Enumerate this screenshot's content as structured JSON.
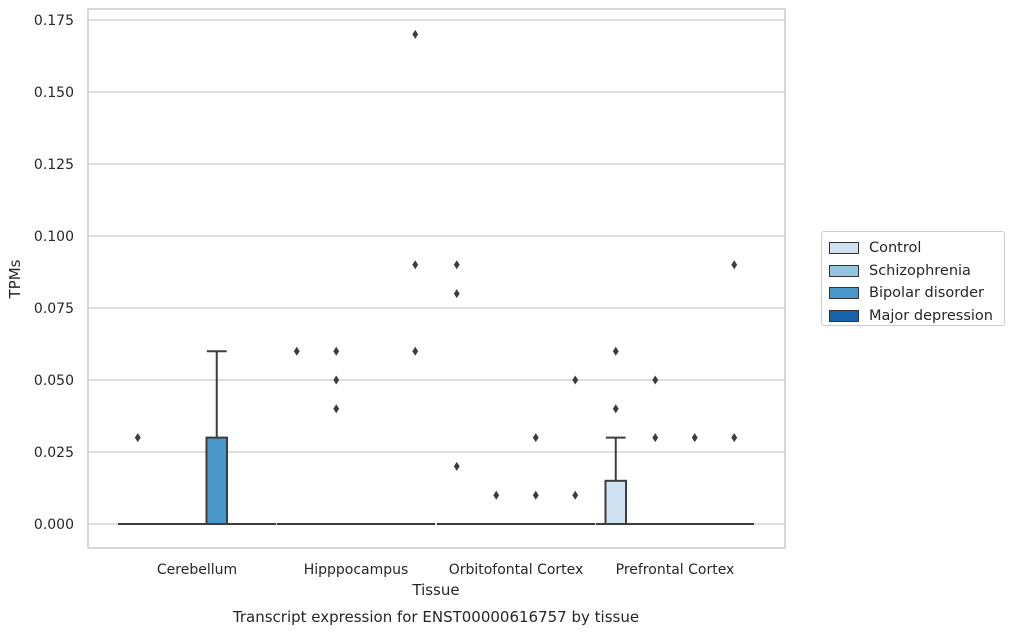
{
  "chart_data": {
    "type": "box",
    "title": "Transcript expression for ENST00000616757 by tissue",
    "xlabel": "Tissue",
    "ylabel": "TPMs",
    "ylim": [
      -0.0085,
      0.1785
    ],
    "yticks": [
      "0.000",
      "0.025",
      "0.050",
      "0.075",
      "0.100",
      "0.125",
      "0.150",
      "0.175"
    ],
    "grid": "horizontal",
    "legend_position": "right",
    "categories": [
      "Cerebellum",
      "Hipppocampus",
      "Orbitofontal Cortex",
      "Prefrontal Cortex"
    ],
    "series": [
      {
        "name": "Control",
        "color": "#d0e1f2",
        "boxes": [
          {
            "q1": 0,
            "median": 0,
            "q3": 0,
            "whisker_low": 0,
            "whisker_high": 0,
            "outliers": [
              0.03
            ]
          },
          {
            "q1": 0,
            "median": 0,
            "q3": 0,
            "whisker_low": 0,
            "whisker_high": 0,
            "outliers": [
              0.06
            ]
          },
          {
            "q1": 0,
            "median": 0,
            "q3": 0,
            "whisker_low": 0,
            "whisker_high": 0,
            "outliers": [
              0.09,
              0.08,
              0.02
            ]
          },
          {
            "q1": 0,
            "median": 0,
            "q3": 0.015,
            "whisker_low": 0,
            "whisker_high": 0.03,
            "outliers": [
              0.06,
              0.04
            ]
          }
        ]
      },
      {
        "name": "Schizophrenia",
        "color": "#94c4df",
        "boxes": [
          {
            "q1": 0,
            "median": 0,
            "q3": 0,
            "whisker_low": 0,
            "whisker_high": 0,
            "outliers": []
          },
          {
            "q1": 0,
            "median": 0,
            "q3": 0,
            "whisker_low": 0,
            "whisker_high": 0,
            "outliers": [
              0.06,
              0.05,
              0.04
            ]
          },
          {
            "q1": 0,
            "median": 0,
            "q3": 0,
            "whisker_low": 0,
            "whisker_high": 0,
            "outliers": [
              0.01
            ]
          },
          {
            "q1": 0,
            "median": 0,
            "q3": 0,
            "whisker_low": 0,
            "whisker_high": 0,
            "outliers": [
              0.05,
              0.03
            ]
          }
        ]
      },
      {
        "name": "Bipolar disorder",
        "color": "#4a98c9",
        "boxes": [
          {
            "q1": 0,
            "median": 0,
            "q3": 0.03,
            "whisker_low": 0,
            "whisker_high": 0.06,
            "outliers": []
          },
          {
            "q1": 0,
            "median": 0,
            "q3": 0,
            "whisker_low": 0,
            "whisker_high": 0,
            "outliers": []
          },
          {
            "q1": 0,
            "median": 0,
            "q3": 0,
            "whisker_low": 0,
            "whisker_high": 0,
            "outliers": [
              0.03,
              0.01
            ]
          },
          {
            "q1": 0,
            "median": 0,
            "q3": 0,
            "whisker_low": 0,
            "whisker_high": 0,
            "outliers": [
              0.03
            ]
          }
        ]
      },
      {
        "name": "Major depression",
        "color": "#1764ab",
        "boxes": [
          {
            "q1": 0,
            "median": 0,
            "q3": 0,
            "whisker_low": 0,
            "whisker_high": 0,
            "outliers": []
          },
          {
            "q1": 0,
            "median": 0,
            "q3": 0,
            "whisker_low": 0,
            "whisker_high": 0,
            "outliers": [
              0.17,
              0.09,
              0.06
            ]
          },
          {
            "q1": 0,
            "median": 0,
            "q3": 0,
            "whisker_low": 0,
            "whisker_high": 0,
            "outliers": [
              0.05,
              0.01
            ]
          },
          {
            "q1": 0,
            "median": 0,
            "q3": 0,
            "whisker_low": 0,
            "whisker_high": 0,
            "outliers": [
              0.09,
              0.03
            ]
          }
        ]
      }
    ]
  }
}
